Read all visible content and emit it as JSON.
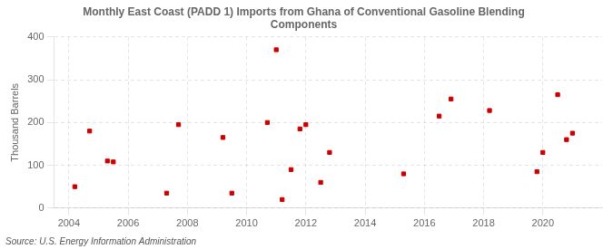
{
  "chart_data": {
    "type": "scatter",
    "title": "Monthly East Coast (PADD 1) Imports from Ghana of Conventional Gasoline Blending\nComponents",
    "ylabel": "Thousand Barrels",
    "annotation": "Source: U.S. Energy Information Administration",
    "x": [
      2004.2,
      2004.7,
      2005.3,
      2005.5,
      2007.3,
      2007.7,
      2009.2,
      2009.5,
      2010.7,
      2011.0,
      2011.2,
      2011.5,
      2011.8,
      2012.0,
      2012.5,
      2012.8,
      2015.3,
      2016.5,
      2016.9,
      2018.2,
      2019.8,
      2020.0,
      2020.5,
      2020.8,
      2021.0
    ],
    "values": [
      50,
      180,
      110,
      108,
      35,
      195,
      165,
      35,
      200,
      370,
      20,
      90,
      185,
      195,
      60,
      130,
      80,
      215,
      255,
      228,
      85,
      130,
      265,
      160,
      175
    ],
    "color": "#cc0000",
    "marker": "square",
    "xlim": [
      2003.5,
      2022.0
    ],
    "ylim": [
      0,
      400
    ],
    "xticks": [
      2004,
      2006,
      2008,
      2010,
      2012,
      2014,
      2016,
      2018,
      2020
    ],
    "yticks": [
      0,
      100,
      200,
      300,
      400
    ],
    "grid": true
  }
}
